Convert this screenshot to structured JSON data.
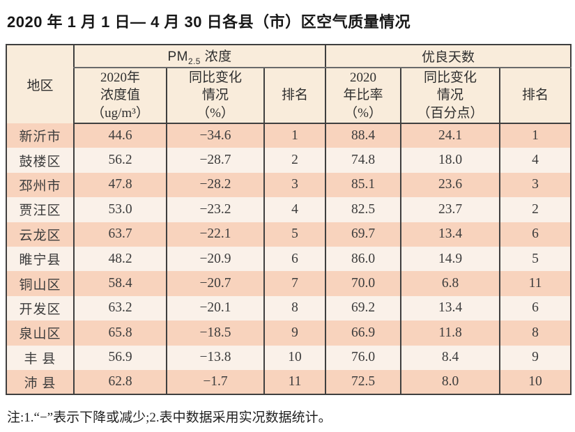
{
  "title": "2020 年 1 月 1 日— 4 月 30 日各县（市）区空气质量情况",
  "note": "注:1.“−”表示下降或减少;2.表中数据采用实况数据统计。",
  "colors": {
    "row_salmon": "#f8d3bd",
    "row_light": "#faf1e9",
    "header_bg": "#f9ecdb",
    "border_dark": "#3f3f3f",
    "title_color": "#171717"
  },
  "table": {
    "header": {
      "region": "地区",
      "pm25_group": {
        "prefix": "PM",
        "sub": "2.5",
        "suffix": " 浓度"
      },
      "good_days_group": "优良天数",
      "pm25_cols": [
        "2020年\n浓度值\n（ug/m³）",
        "同比变化\n情况\n（%）",
        "排名"
      ],
      "good_cols": [
        "2020\n年比率\n（%）",
        "同比变化\n情况\n（百分点）",
        "排名"
      ]
    },
    "rows": [
      {
        "region": "新沂市",
        "pm25": "44.6",
        "pm25_change": "−34.6",
        "pm25_rank": "1",
        "good_rate": "88.4",
        "good_change": "24.1",
        "good_rank": "1"
      },
      {
        "region": "鼓楼区",
        "pm25": "56.2",
        "pm25_change": "−28.7",
        "pm25_rank": "2",
        "good_rate": "74.8",
        "good_change": "18.0",
        "good_rank": "4"
      },
      {
        "region": "邳州市",
        "pm25": "47.8",
        "pm25_change": "−28.2",
        "pm25_rank": "3",
        "good_rate": "85.1",
        "good_change": "23.6",
        "good_rank": "3"
      },
      {
        "region": "贾汪区",
        "pm25": "53.0",
        "pm25_change": "−23.2",
        "pm25_rank": "4",
        "good_rate": "82.5",
        "good_change": "23.7",
        "good_rank": "2"
      },
      {
        "region": "云龙区",
        "pm25": "63.7",
        "pm25_change": "−22.1",
        "pm25_rank": "5",
        "good_rate": "69.7",
        "good_change": "13.4",
        "good_rank": "6"
      },
      {
        "region": "睢宁县",
        "pm25": "48.2",
        "pm25_change": "−20.9",
        "pm25_rank": "6",
        "good_rate": "86.0",
        "good_change": "14.9",
        "good_rank": "5"
      },
      {
        "region": "铜山区",
        "pm25": "58.4",
        "pm25_change": "−20.7",
        "pm25_rank": "7",
        "good_rate": "70.0",
        "good_change": "6.8",
        "good_rank": "11"
      },
      {
        "region": "开发区",
        "pm25": "63.2",
        "pm25_change": "−20.1",
        "pm25_rank": "8",
        "good_rate": "69.2",
        "good_change": "13.4",
        "good_rank": "6"
      },
      {
        "region": "泉山区",
        "pm25": "65.8",
        "pm25_change": "−18.5",
        "pm25_rank": "9",
        "good_rate": "66.9",
        "good_change": "11.8",
        "good_rank": "8"
      },
      {
        "region": "丰 县",
        "pm25": "56.9",
        "pm25_change": "−13.8",
        "pm25_rank": "10",
        "good_rate": "76.0",
        "good_change": "8.4",
        "good_rank": "9"
      },
      {
        "region": "沛 县",
        "pm25": "62.8",
        "pm25_change": "−1.7",
        "pm25_rank": "11",
        "good_rate": "72.5",
        "good_change": "8.0",
        "good_rank": "10"
      }
    ]
  }
}
